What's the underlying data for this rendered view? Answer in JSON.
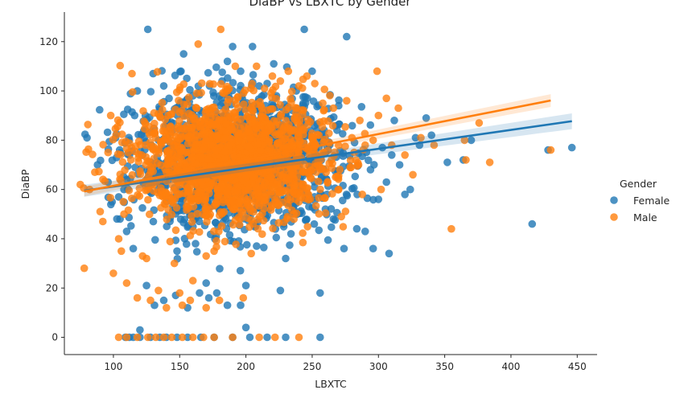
{
  "chart_data": {
    "type": "scatter",
    "title": "DiaBP vs LBXTC by Gender",
    "xlabel": "LBXTC",
    "ylabel": "DiaBP",
    "xlim": [
      63,
      465
    ],
    "ylim": [
      -7,
      132
    ],
    "x_ticks": [
      100,
      150,
      200,
      250,
      300,
      350,
      400,
      450
    ],
    "y_ticks": [
      0,
      20,
      40,
      60,
      80,
      100,
      120
    ],
    "grid": false,
    "legend": {
      "title": "Gender",
      "placement": "right"
    },
    "series": [
      {
        "name": "Female",
        "color": "#1f77b4",
        "regression": {
          "x": [
            78,
            446
          ],
          "y": [
            59.5,
            87.7
          ],
          "ci_halfwidth": [
            1.6,
            3.2
          ]
        },
        "cloud": {
          "x_center": 193,
          "x_spread": 38,
          "y_center": 71,
          "y_spread": 13,
          "count": 1500
        },
        "points": [
          [
            88,
            70
          ],
          [
            96,
            63
          ],
          [
            99,
            55
          ],
          [
            105,
            48
          ],
          [
            110,
            43
          ],
          [
            115,
            36
          ],
          [
            118,
            100
          ],
          [
            125,
            21
          ],
          [
            126,
            125
          ],
          [
            130,
            107
          ],
          [
            138,
            102
          ],
          [
            142,
            97
          ],
          [
            148,
            35
          ],
          [
            151,
            108
          ],
          [
            153,
            115
          ],
          [
            160,
            98
          ],
          [
            162,
            38
          ],
          [
            170,
            22
          ],
          [
            178,
            18
          ],
          [
            182,
            104
          ],
          [
            186,
            112
          ],
          [
            190,
            118
          ],
          [
            196,
            108
          ],
          [
            200,
            21
          ],
          [
            205,
            118
          ],
          [
            210,
            102
          ],
          [
            216,
            103
          ],
          [
            221,
            111
          ],
          [
            223,
            98
          ],
          [
            226,
            19
          ],
          [
            230,
            32
          ],
          [
            234,
            42
          ],
          [
            238,
            100
          ],
          [
            244,
            125
          ],
          [
            250,
            108
          ],
          [
            256,
            18
          ],
          [
            260,
            52
          ],
          [
            266,
            48
          ],
          [
            270,
            94
          ],
          [
            274,
            36
          ],
          [
            276,
            122
          ],
          [
            282,
            79
          ],
          [
            284,
            58
          ],
          [
            290,
            43
          ],
          [
            294,
            68
          ],
          [
            296,
            36
          ],
          [
            300,
            56
          ],
          [
            303,
            77
          ],
          [
            306,
            63
          ],
          [
            308,
            34
          ],
          [
            310,
            74
          ],
          [
            312,
            88
          ],
          [
            316,
            70
          ],
          [
            320,
            58
          ],
          [
            324,
            60
          ],
          [
            328,
            81
          ],
          [
            331,
            78
          ],
          [
            336,
            89
          ],
          [
            340,
            82
          ],
          [
            352,
            71
          ],
          [
            364,
            72
          ],
          [
            370,
            80
          ],
          [
            416,
            46
          ],
          [
            428,
            76
          ],
          [
            446,
            77
          ],
          [
            109,
            0
          ],
          [
            112,
            0
          ],
          [
            115,
            0
          ],
          [
            120,
            0
          ],
          [
            128,
            0
          ],
          [
            135,
            0
          ],
          [
            140,
            0
          ],
          [
            148,
            0
          ],
          [
            156,
            0
          ],
          [
            166,
            0
          ],
          [
            176,
            0
          ],
          [
            190,
            0
          ],
          [
            200,
            4
          ],
          [
            203,
            0
          ],
          [
            216,
            0
          ],
          [
            230,
            0
          ],
          [
            256,
            0
          ],
          [
            131,
            13
          ],
          [
            138,
            15
          ],
          [
            147,
            17
          ],
          [
            156,
            12
          ],
          [
            165,
            18
          ],
          [
            172,
            16
          ],
          [
            186,
            13
          ],
          [
            196,
            13
          ],
          [
            120,
            3
          ],
          [
            108,
            60
          ],
          [
            112,
            80
          ],
          [
            116,
            90
          ],
          [
            104,
            57
          ],
          [
            134,
            80
          ],
          [
            150,
            60
          ],
          [
            180,
            55
          ],
          [
            220,
            65
          ],
          [
            240,
            70
          ],
          [
            260,
            75
          ]
        ]
      },
      {
        "name": "Male",
        "color": "#ff7f0e",
        "regression": {
          "x": [
            78,
            430
          ],
          "y": [
            59.2,
            96.1
          ],
          "ci_halfwidth": [
            1.3,
            2.6
          ]
        },
        "cloud": {
          "x_center": 190,
          "x_spread": 36,
          "y_center": 72,
          "y_spread": 12,
          "count": 1600
        },
        "points": [
          [
            75,
            62
          ],
          [
            78,
            28
          ],
          [
            82,
            60
          ],
          [
            86,
            67
          ],
          [
            90,
            51
          ],
          [
            92,
            47
          ],
          [
            96,
            75
          ],
          [
            98,
            90
          ],
          [
            100,
            26
          ],
          [
            102,
            82
          ],
          [
            104,
            40
          ],
          [
            106,
            35
          ],
          [
            108,
            50
          ],
          [
            110,
            22
          ],
          [
            114,
            107
          ],
          [
            118,
            16
          ],
          [
            122,
            33
          ],
          [
            128,
            15
          ],
          [
            134,
            19
          ],
          [
            140,
            12
          ],
          [
            146,
            30
          ],
          [
            152,
            13
          ],
          [
            158,
            15
          ],
          [
            164,
            119
          ],
          [
            170,
            33
          ],
          [
            176,
            35
          ],
          [
            181,
            125
          ],
          [
            186,
            100
          ],
          [
            192,
            110
          ],
          [
            198,
            16
          ],
          [
            204,
            34
          ],
          [
            208,
            110
          ],
          [
            214,
            101
          ],
          [
            220,
            106
          ],
          [
            226,
            104
          ],
          [
            232,
            108
          ],
          [
            240,
            102
          ],
          [
            246,
            106
          ],
          [
            252,
            103
          ],
          [
            258,
            95
          ],
          [
            266,
            93
          ],
          [
            272,
            49
          ],
          [
            276,
            96
          ],
          [
            280,
            81
          ],
          [
            286,
            88
          ],
          [
            290,
            78
          ],
          [
            296,
            80
          ],
          [
            299,
            108
          ],
          [
            302,
            60
          ],
          [
            306,
            97
          ],
          [
            310,
            78
          ],
          [
            315,
            93
          ],
          [
            320,
            74
          ],
          [
            326,
            66
          ],
          [
            332,
            81
          ],
          [
            342,
            78
          ],
          [
            355,
            44
          ],
          [
            365,
            80
          ],
          [
            366,
            72
          ],
          [
            376,
            87
          ],
          [
            384,
            71
          ],
          [
            430,
            76
          ],
          [
            104,
            0
          ],
          [
            110,
            0
          ],
          [
            118,
            0
          ],
          [
            126,
            0
          ],
          [
            132,
            0
          ],
          [
            138,
            0
          ],
          [
            144,
            0
          ],
          [
            152,
            0
          ],
          [
            160,
            0
          ],
          [
            168,
            0
          ],
          [
            176,
            0
          ],
          [
            190,
            0
          ],
          [
            210,
            0
          ],
          [
            222,
            0
          ],
          [
            240,
            0
          ],
          [
            160,
            23
          ],
          [
            170,
            12
          ],
          [
            180,
            15
          ],
          [
            150,
            18
          ],
          [
            125,
            32
          ],
          [
            130,
            62
          ],
          [
            145,
            70
          ],
          [
            170,
            80
          ],
          [
            200,
            65
          ],
          [
            230,
            75
          ],
          [
            255,
            82
          ],
          [
            270,
            60
          ],
          [
            285,
            70
          ],
          [
            300,
            90
          ],
          [
            240,
            55
          ]
        ]
      }
    ]
  }
}
